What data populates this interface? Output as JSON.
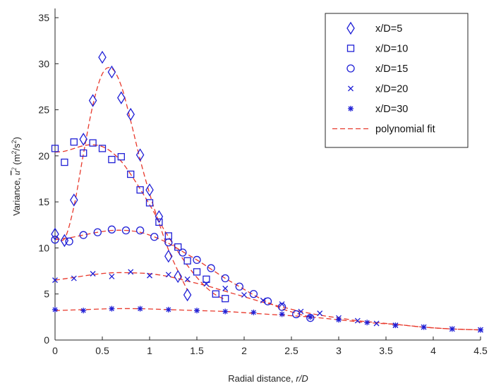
{
  "chart_data": {
    "type": "scatter",
    "title": "",
    "xlabel_main": "Radial distance, ",
    "xlabel_italic": "r/D",
    "ylabel_prefix": "Variance, ",
    "ylabel_symbol": "u",
    "ylabel_symbol_exp": "2",
    "ylabel_unit_open": " (m",
    "ylabel_unit_exp1": "2",
    "ylabel_unit_mid": "/s",
    "ylabel_unit_exp2": "2",
    "ylabel_unit_close": ")",
    "xlim": [
      0,
      4.5
    ],
    "ylim": [
      0,
      36
    ],
    "xticks": [
      0,
      0.5,
      1,
      1.5,
      2,
      2.5,
      3,
      3.5,
      4,
      4.5
    ],
    "xtick_labels": [
      "0",
      "0.5",
      "1",
      "1.5",
      "2",
      "2.5",
      "3",
      "3.5",
      "4",
      "4.5"
    ],
    "yticks": [
      0,
      5,
      10,
      15,
      20,
      25,
      30,
      35
    ],
    "ytick_labels": [
      "0",
      "5",
      "10",
      "15",
      "20",
      "25",
      "30",
      "35"
    ],
    "grid": false,
    "legend_position": "top-right",
    "marker_color": "#1f1fd6",
    "fit_color": "#e8392c",
    "fit_name": "polynomial fit",
    "series": [
      {
        "name": "x/D=5",
        "marker": "diamond",
        "x": [
          0,
          0.1,
          0.2,
          0.3,
          0.4,
          0.5,
          0.6,
          0.7,
          0.8,
          0.9,
          1.0,
          1.1,
          1.2,
          1.3,
          1.4
        ],
        "y": [
          11.5,
          10.8,
          15.2,
          21.8,
          26.0,
          30.7,
          29.1,
          26.3,
          24.5,
          20.1,
          16.3,
          13.4,
          9.1,
          6.9,
          4.9
        ],
        "fit_x": [
          0,
          0.1,
          0.2,
          0.3,
          0.4,
          0.5,
          0.6,
          0.7,
          0.8,
          0.9,
          1.0,
          1.1,
          1.2,
          1.3,
          1.4
        ],
        "fit_y": [
          11.3,
          11.0,
          14.5,
          20.2,
          25.5,
          28.9,
          29.5,
          27.6,
          23.8,
          19.6,
          15.9,
          12.7,
          9.8,
          7.5,
          5.4
        ]
      },
      {
        "name": "x/D=10",
        "marker": "square",
        "x": [
          0,
          0.1,
          0.2,
          0.3,
          0.4,
          0.5,
          0.6,
          0.7,
          0.8,
          0.9,
          1.0,
          1.1,
          1.2,
          1.3,
          1.4,
          1.5,
          1.6,
          1.7,
          1.8
        ],
        "y": [
          20.8,
          19.3,
          21.5,
          20.3,
          21.4,
          20.8,
          19.6,
          19.9,
          18.0,
          16.3,
          14.9,
          12.8,
          11.3,
          10.1,
          8.6,
          7.4,
          6.6,
          5.0,
          4.5
        ],
        "fit_x": [
          0,
          0.1,
          0.2,
          0.3,
          0.4,
          0.5,
          0.6,
          0.7,
          0.8,
          0.9,
          1.0,
          1.1,
          1.2,
          1.3,
          1.4,
          1.5,
          1.6,
          1.7,
          1.8
        ],
        "fit_y": [
          20.4,
          20.5,
          20.8,
          21.1,
          21.2,
          21.0,
          20.4,
          19.4,
          18.0,
          16.4,
          14.7,
          12.9,
          11.2,
          9.6,
          8.1,
          6.8,
          5.7,
          4.9,
          4.4
        ]
      },
      {
        "name": "x/D=15",
        "marker": "circle",
        "x": [
          0,
          0.15,
          0.3,
          0.45,
          0.6,
          0.75,
          0.9,
          1.05,
          1.2,
          1.35,
          1.5,
          1.65,
          1.8,
          1.95,
          2.1,
          2.25,
          2.4,
          2.55,
          2.7
        ],
        "y": [
          10.9,
          10.7,
          11.4,
          11.7,
          12.0,
          11.9,
          11.9,
          11.2,
          10.6,
          9.5,
          8.7,
          7.8,
          6.7,
          5.8,
          5.0,
          4.2,
          3.6,
          2.8,
          2.4
        ],
        "fit_x": [
          0,
          0.15,
          0.3,
          0.45,
          0.6,
          0.75,
          0.9,
          1.05,
          1.2,
          1.35,
          1.5,
          1.65,
          1.8,
          1.95,
          2.1,
          2.25,
          2.4,
          2.55,
          2.7
        ],
        "fit_y": [
          10.9,
          11.1,
          11.4,
          11.7,
          11.9,
          11.9,
          11.7,
          11.2,
          10.5,
          9.6,
          8.7,
          7.7,
          6.7,
          5.8,
          4.9,
          4.1,
          3.4,
          2.9,
          2.5
        ]
      },
      {
        "name": "x/D=20",
        "marker": "cross",
        "x": [
          0,
          0.2,
          0.4,
          0.6,
          0.8,
          1.0,
          1.2,
          1.4,
          1.6,
          1.8,
          2.0,
          2.2,
          2.4,
          2.6,
          2.8,
          3.0,
          3.2,
          3.4,
          3.6,
          3.9,
          4.2,
          4.5
        ],
        "y": [
          6.5,
          6.7,
          7.2,
          6.9,
          7.4,
          7.0,
          7.1,
          6.6,
          6.1,
          5.6,
          4.9,
          4.3,
          3.9,
          3.1,
          2.9,
          2.4,
          2.1,
          1.8,
          1.6,
          1.4,
          1.2,
          1.1
        ],
        "fit_x": [
          0,
          0.2,
          0.4,
          0.6,
          0.8,
          1.0,
          1.2,
          1.4,
          1.6,
          1.8,
          2.0,
          2.2,
          2.4,
          2.6,
          2.8,
          3.0,
          3.2,
          3.4,
          3.6,
          3.9,
          4.2,
          4.5
        ],
        "fit_y": [
          6.5,
          6.8,
          7.1,
          7.3,
          7.3,
          7.2,
          6.9,
          6.4,
          5.9,
          5.3,
          4.7,
          4.1,
          3.6,
          3.1,
          2.7,
          2.4,
          2.1,
          1.9,
          1.7,
          1.4,
          1.2,
          1.1
        ]
      },
      {
        "name": "x/D=30",
        "marker": "asterisk",
        "x": [
          0,
          0.3,
          0.6,
          0.9,
          1.2,
          1.5,
          1.8,
          2.1,
          2.4,
          2.7,
          3.0,
          3.3,
          3.6,
          3.9,
          4.2,
          4.5
        ],
        "y": [
          3.3,
          3.2,
          3.4,
          3.4,
          3.3,
          3.2,
          3.1,
          3.0,
          2.8,
          2.5,
          2.2,
          1.9,
          1.6,
          1.4,
          1.2,
          1.1
        ],
        "fit_x": [
          0,
          0.3,
          0.6,
          0.9,
          1.2,
          1.5,
          1.8,
          2.1,
          2.4,
          2.7,
          3.0,
          3.3,
          3.6,
          3.9,
          4.2,
          4.5
        ],
        "fit_y": [
          3.2,
          3.3,
          3.4,
          3.4,
          3.3,
          3.2,
          3.1,
          2.9,
          2.7,
          2.5,
          2.2,
          1.9,
          1.7,
          1.4,
          1.2,
          1.1
        ]
      }
    ]
  }
}
